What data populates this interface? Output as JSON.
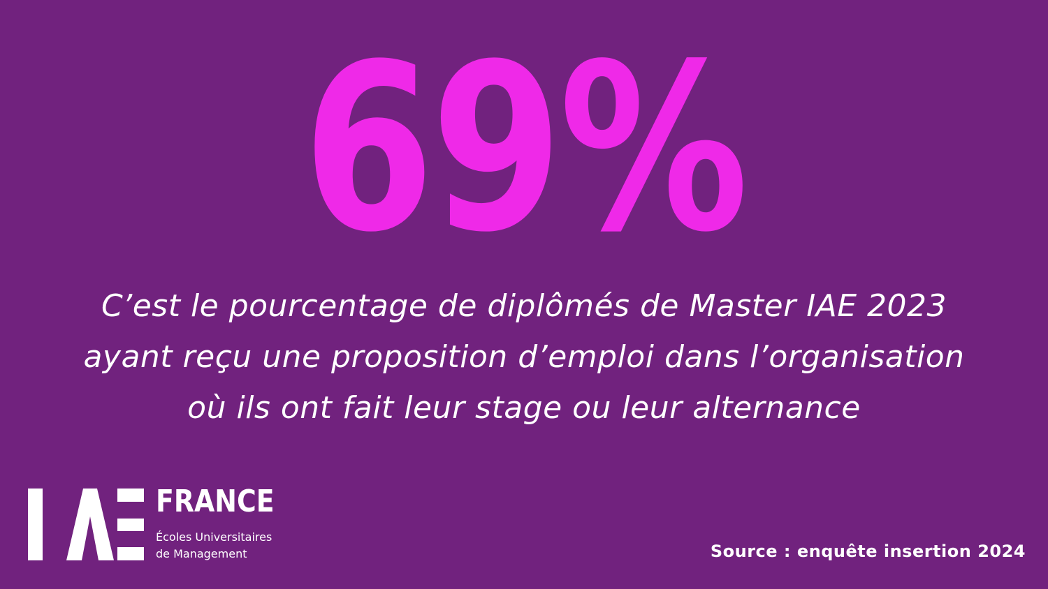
{
  "stat": {
    "value": "69%",
    "color": "#ef29e8"
  },
  "description": {
    "lines": [
      "C’est le pourcentage de diplômés de Master IAE 2023",
      "ayant reçu une proposition d’emploi dans l’organisation",
      "où ils ont fait leur stage ou leur alternance"
    ]
  },
  "logo": {
    "mark": "IAE",
    "word": "FRANCE",
    "tagline": [
      "Écoles Universitaires",
      "de Management"
    ]
  },
  "source": "Source : enquête insertion 2024",
  "colors": {
    "background": "#71227e",
    "accent": "#ef29e8",
    "text": "#ffffff"
  }
}
